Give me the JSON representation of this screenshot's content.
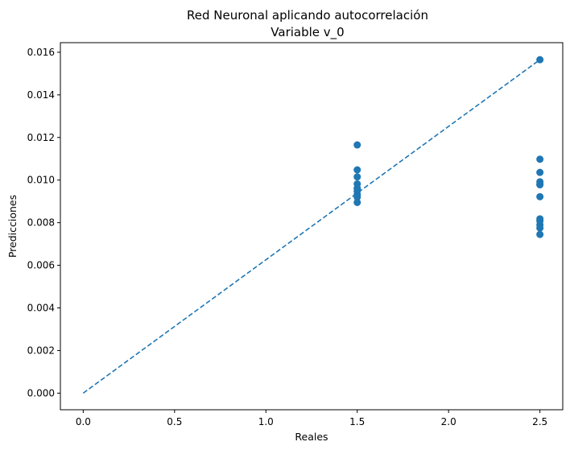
{
  "chart_data": {
    "type": "scatter",
    "title": "Red Neuronal aplicando autocorrelación",
    "subtitle": "Variable v_0",
    "xlabel": "Reales",
    "ylabel": "Predicciones",
    "xlim": [
      -0.125,
      2.625
    ],
    "ylim": [
      -0.00078,
      0.01645
    ],
    "x_ticks": [
      {
        "value": 0.0,
        "label": "0.0"
      },
      {
        "value": 0.5,
        "label": "0.5"
      },
      {
        "value": 1.0,
        "label": "1.0"
      },
      {
        "value": 1.5,
        "label": "1.5"
      },
      {
        "value": 2.0,
        "label": "2.0"
      },
      {
        "value": 2.5,
        "label": "2.5"
      }
    ],
    "y_ticks": [
      {
        "value": 0.0,
        "label": "0.000"
      },
      {
        "value": 0.002,
        "label": "0.002"
      },
      {
        "value": 0.004,
        "label": "0.004"
      },
      {
        "value": 0.006,
        "label": "0.006"
      },
      {
        "value": 0.008,
        "label": "0.008"
      },
      {
        "value": 0.01,
        "label": "0.010"
      },
      {
        "value": 0.012,
        "label": "0.012"
      },
      {
        "value": 0.014,
        "label": "0.014"
      },
      {
        "value": 0.016,
        "label": "0.016"
      }
    ],
    "grid": false,
    "point_color": "#1f77b4",
    "line_color": "#1f77b4",
    "series": [
      {
        "x": [
          1.5,
          1.5,
          1.5,
          1.5,
          1.5,
          1.5,
          1.5,
          1.5,
          1.5,
          1.5,
          2.5,
          2.5,
          2.5,
          2.5,
          2.5,
          2.5,
          2.5,
          2.5,
          2.5,
          2.5,
          2.5,
          2.5
        ],
        "y": [
          0.01165,
          0.01048,
          0.01015,
          0.00982,
          0.00962,
          0.00948,
          0.00932,
          0.0092,
          0.00895,
          0.0096,
          0.01565,
          0.01098,
          0.01036,
          0.00992,
          0.0098,
          0.00922,
          0.00818,
          0.00808,
          0.0079,
          0.00775,
          0.00745,
          0.00978
        ]
      }
    ],
    "reference_line": {
      "x": [
        0.0,
        2.5
      ],
      "y": [
        0.0,
        0.01565
      ],
      "style": "dashed"
    }
  }
}
